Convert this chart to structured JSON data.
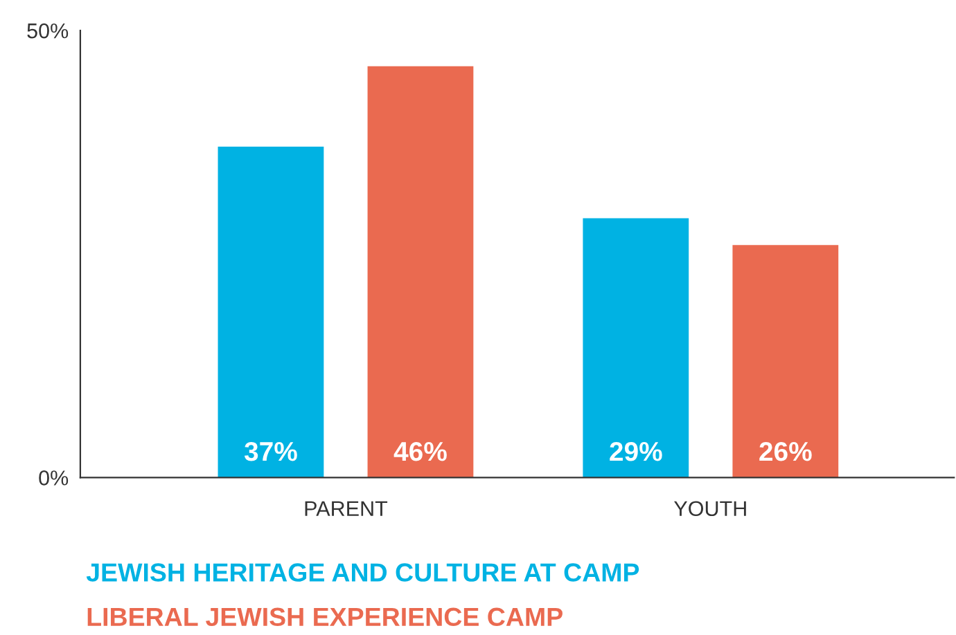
{
  "chart_data": {
    "type": "bar",
    "categories": [
      "PARENT",
      "YOUTH"
    ],
    "series": [
      {
        "name": "JEWISH HERITAGE AND CULTURE AT CAMP",
        "color": "#00b2e3",
        "values": [
          37,
          29
        ]
      },
      {
        "name": "LIBERAL JEWISH EXPERIENCE CAMP",
        "color": "#ea6a50",
        "values": [
          46,
          26
        ]
      }
    ],
    "ylim": [
      0,
      50
    ],
    "yticks": [
      {
        "value": 0,
        "label": "0%"
      },
      {
        "value": 50,
        "label": "50%"
      }
    ],
    "value_labels": [
      [
        "37%",
        "29%"
      ],
      [
        "46%",
        "26%"
      ]
    ],
    "legend": "bottom",
    "grid": false
  }
}
